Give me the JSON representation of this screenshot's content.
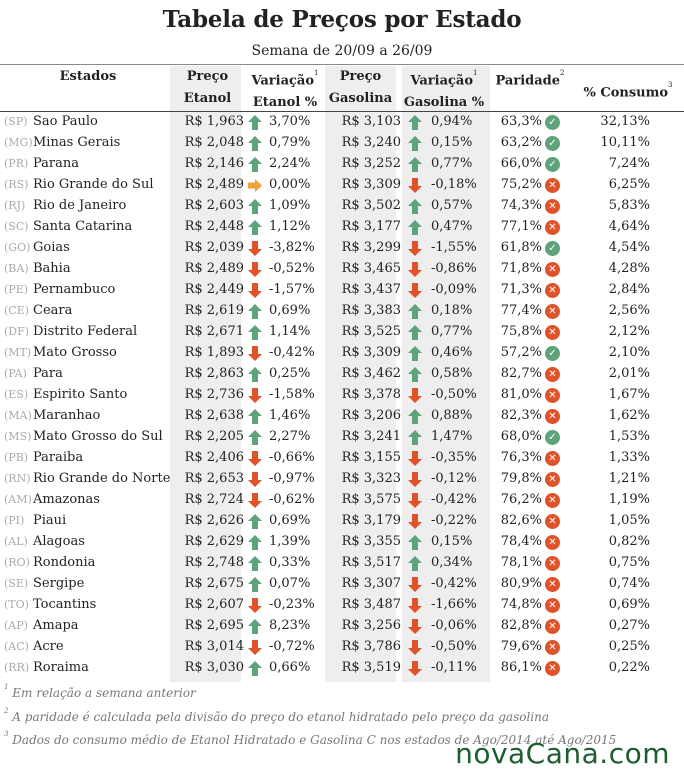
{
  "title": "Tabela de Preços por Estado",
  "subtitle": "Semana de 20/09 a 26/09",
  "headers": {
    "estados": "Estados",
    "preco_etanol": [
      "Preço",
      "Etanol"
    ],
    "variacao_etanol": [
      "Variação",
      "Etanol %"
    ],
    "preco_gasolina": [
      "Preço",
      "Gasolina"
    ],
    "variacao_gasolina": [
      "Variação",
      "Gasolina %"
    ],
    "paridade": "Paridade",
    "consumo": "% Consumo",
    "sup1": "1",
    "sup2": "2",
    "sup3": "3"
  },
  "colors": {
    "up": "#5fa37a",
    "down": "#e0522a",
    "flat": "#f0a13a",
    "ok": "#5fa37a",
    "bad": "#e0522a",
    "brand": "#1e5d2d"
  },
  "rows": [
    {
      "uf": "(SP)",
      "estado": "Sao Paulo",
      "preco_etanol": "R$ 1,963",
      "dir_e": "up",
      "var_e": "3,70%",
      "preco_gas": "R$ 3,103",
      "dir_g": "up",
      "var_g": "0,94%",
      "paridade": "63,3%",
      "ok": true,
      "consumo": "32,13%"
    },
    {
      "uf": "(MG)",
      "estado": "Minas Gerais",
      "preco_etanol": "R$ 2,048",
      "dir_e": "up",
      "var_e": "0,79%",
      "preco_gas": "R$ 3,240",
      "dir_g": "up",
      "var_g": "0,15%",
      "paridade": "63,2%",
      "ok": true,
      "consumo": "10,11%"
    },
    {
      "uf": "(PR)",
      "estado": "Parana",
      "preco_etanol": "R$ 2,146",
      "dir_e": "up",
      "var_e": "2,24%",
      "preco_gas": "R$ 3,252",
      "dir_g": "up",
      "var_g": "0,77%",
      "paridade": "66,0%",
      "ok": true,
      "consumo": "7,24%"
    },
    {
      "uf": "(RS)",
      "estado": "Rio Grande do Sul",
      "preco_etanol": "R$ 2,489",
      "dir_e": "flat",
      "var_e": "0,00%",
      "preco_gas": "R$ 3,309",
      "dir_g": "down",
      "var_g": "-0,18%",
      "paridade": "75,2%",
      "ok": false,
      "consumo": "6,25%"
    },
    {
      "uf": "(RJ)",
      "estado": "Rio de Janeiro",
      "preco_etanol": "R$ 2,603",
      "dir_e": "up",
      "var_e": "1,09%",
      "preco_gas": "R$ 3,502",
      "dir_g": "up",
      "var_g": "0,57%",
      "paridade": "74,3%",
      "ok": false,
      "consumo": "5,83%"
    },
    {
      "uf": "(SC)",
      "estado": "Santa Catarina",
      "preco_etanol": "R$ 2,448",
      "dir_e": "up",
      "var_e": "1,12%",
      "preco_gas": "R$ 3,177",
      "dir_g": "up",
      "var_g": "0,47%",
      "paridade": "77,1%",
      "ok": false,
      "consumo": "4,64%"
    },
    {
      "uf": "(GO)",
      "estado": "Goias",
      "preco_etanol": "R$ 2,039",
      "dir_e": "down",
      "var_e": "-3,82%",
      "preco_gas": "R$ 3,299",
      "dir_g": "down",
      "var_g": "-1,55%",
      "paridade": "61,8%",
      "ok": true,
      "consumo": "4,54%"
    },
    {
      "uf": "(BA)",
      "estado": "Bahia",
      "preco_etanol": "R$ 2,489",
      "dir_e": "down",
      "var_e": "-0,52%",
      "preco_gas": "R$ 3,465",
      "dir_g": "down",
      "var_g": "-0,86%",
      "paridade": "71,8%",
      "ok": false,
      "consumo": "4,28%"
    },
    {
      "uf": "(PE)",
      "estado": "Pernambuco",
      "preco_etanol": "R$ 2,449",
      "dir_e": "down",
      "var_e": "-1,57%",
      "preco_gas": "R$ 3,437",
      "dir_g": "down",
      "var_g": "-0,09%",
      "paridade": "71,3%",
      "ok": false,
      "consumo": "2,84%"
    },
    {
      "uf": "(CE)",
      "estado": "Ceara",
      "preco_etanol": "R$ 2,619",
      "dir_e": "up",
      "var_e": "0,69%",
      "preco_gas": "R$ 3,383",
      "dir_g": "up",
      "var_g": "0,18%",
      "paridade": "77,4%",
      "ok": false,
      "consumo": "2,56%"
    },
    {
      "uf": "(DF)",
      "estado": "Distrito Federal",
      "preco_etanol": "R$ 2,671",
      "dir_e": "up",
      "var_e": "1,14%",
      "preco_gas": "R$ 3,525",
      "dir_g": "up",
      "var_g": "0,77%",
      "paridade": "75,8%",
      "ok": false,
      "consumo": "2,12%"
    },
    {
      "uf": "(MT)",
      "estado": "Mato Grosso",
      "preco_etanol": "R$ 1,893",
      "dir_e": "down",
      "var_e": "-0,42%",
      "preco_gas": "R$ 3,309",
      "dir_g": "up",
      "var_g": "0,46%",
      "paridade": "57,2%",
      "ok": true,
      "consumo": "2,10%"
    },
    {
      "uf": "(PA)",
      "estado": "Para",
      "preco_etanol": "R$ 2,863",
      "dir_e": "up",
      "var_e": "0,25%",
      "preco_gas": "R$ 3,462",
      "dir_g": "up",
      "var_g": "0,58%",
      "paridade": "82,7%",
      "ok": false,
      "consumo": "2,01%"
    },
    {
      "uf": "(ES)",
      "estado": "Espirito Santo",
      "preco_etanol": "R$ 2,736",
      "dir_e": "down",
      "var_e": "-1,58%",
      "preco_gas": "R$ 3,378",
      "dir_g": "down",
      "var_g": "-0,50%",
      "paridade": "81,0%",
      "ok": false,
      "consumo": "1,67%"
    },
    {
      "uf": "(MA)",
      "estado": "Maranhao",
      "preco_etanol": "R$ 2,638",
      "dir_e": "up",
      "var_e": "1,46%",
      "preco_gas": "R$ 3,206",
      "dir_g": "up",
      "var_g": "0,88%",
      "paridade": "82,3%",
      "ok": false,
      "consumo": "1,62%"
    },
    {
      "uf": "(MS)",
      "estado": "Mato Grosso do Sul",
      "preco_etanol": "R$ 2,205",
      "dir_e": "up",
      "var_e": "2,27%",
      "preco_gas": "R$ 3,241",
      "dir_g": "up",
      "var_g": "1,47%",
      "paridade": "68,0%",
      "ok": true,
      "consumo": "1,53%"
    },
    {
      "uf": "(PB)",
      "estado": "Paraiba",
      "preco_etanol": "R$ 2,406",
      "dir_e": "down",
      "var_e": "-0,66%",
      "preco_gas": "R$ 3,155",
      "dir_g": "down",
      "var_g": "-0,35%",
      "paridade": "76,3%",
      "ok": false,
      "consumo": "1,33%"
    },
    {
      "uf": "(RN)",
      "estado": "Rio Grande do Norte",
      "preco_etanol": "R$ 2,653",
      "dir_e": "down",
      "var_e": "-0,97%",
      "preco_gas": "R$ 3,323",
      "dir_g": "down",
      "var_g": "-0,12%",
      "paridade": "79,8%",
      "ok": false,
      "consumo": "1,21%"
    },
    {
      "uf": "(AM)",
      "estado": "Amazonas",
      "preco_etanol": "R$ 2,724",
      "dir_e": "down",
      "var_e": "-0,62%",
      "preco_gas": "R$ 3,575",
      "dir_g": "down",
      "var_g": "-0,42%",
      "paridade": "76,2%",
      "ok": false,
      "consumo": "1,19%"
    },
    {
      "uf": "(PI)",
      "estado": "Piaui",
      "preco_etanol": "R$ 2,626",
      "dir_e": "up",
      "var_e": "0,69%",
      "preco_gas": "R$ 3,179",
      "dir_g": "down",
      "var_g": "-0,22%",
      "paridade": "82,6%",
      "ok": false,
      "consumo": "1,05%"
    },
    {
      "uf": "(AL)",
      "estado": "Alagoas",
      "preco_etanol": "R$ 2,629",
      "dir_e": "up",
      "var_e": "1,39%",
      "preco_gas": "R$ 3,355",
      "dir_g": "up",
      "var_g": "0,15%",
      "paridade": "78,4%",
      "ok": false,
      "consumo": "0,82%"
    },
    {
      "uf": "(RO)",
      "estado": "Rondonia",
      "preco_etanol": "R$ 2,748",
      "dir_e": "up",
      "var_e": "0,33%",
      "preco_gas": "R$ 3,517",
      "dir_g": "up",
      "var_g": "0,34%",
      "paridade": "78,1%",
      "ok": false,
      "consumo": "0,75%"
    },
    {
      "uf": "(SE)",
      "estado": "Sergipe",
      "preco_etanol": "R$ 2,675",
      "dir_e": "up",
      "var_e": "0,07%",
      "preco_gas": "R$ 3,307",
      "dir_g": "down",
      "var_g": "-0,42%",
      "paridade": "80,9%",
      "ok": false,
      "consumo": "0,74%"
    },
    {
      "uf": "(TO)",
      "estado": "Tocantins",
      "preco_etanol": "R$ 2,607",
      "dir_e": "down",
      "var_e": "-0,23%",
      "preco_gas": "R$ 3,487",
      "dir_g": "down",
      "var_g": "-1,66%",
      "paridade": "74,8%",
      "ok": false,
      "consumo": "0,69%"
    },
    {
      "uf": "(AP)",
      "estado": "Amapa",
      "preco_etanol": "R$ 2,695",
      "dir_e": "up",
      "var_e": "8,23%",
      "preco_gas": "R$ 3,256",
      "dir_g": "down",
      "var_g": "-0,06%",
      "paridade": "82,8%",
      "ok": false,
      "consumo": "0,27%"
    },
    {
      "uf": "(AC)",
      "estado": "Acre",
      "preco_etanol": "R$ 3,014",
      "dir_e": "down",
      "var_e": "-0,72%",
      "preco_gas": "R$ 3,786",
      "dir_g": "down",
      "var_g": "-0,50%",
      "paridade": "79,6%",
      "ok": false,
      "consumo": "0,25%"
    },
    {
      "uf": "(RR)",
      "estado": "Roraima",
      "preco_etanol": "R$ 3,030",
      "dir_e": "up",
      "var_e": "0,66%",
      "preco_gas": "R$ 3,519",
      "dir_g": "down",
      "var_g": "-0,11%",
      "paridade": "86,1%",
      "ok": false,
      "consumo": "0,22%"
    }
  ],
  "notes": [
    {
      "sup": "1",
      "text": "Em relação a semana anterior"
    },
    {
      "sup": "2",
      "text": "A paridade é calculada pela divisão do preço do etanol hidratado pelo preço da gasolina"
    },
    {
      "sup": "3",
      "text": "Dados do consumo médio de Etanol Hidratado e Gasolina C nos estados de Ago/2014 até Ago/2015"
    }
  ],
  "brand": "novaCana.com"
}
